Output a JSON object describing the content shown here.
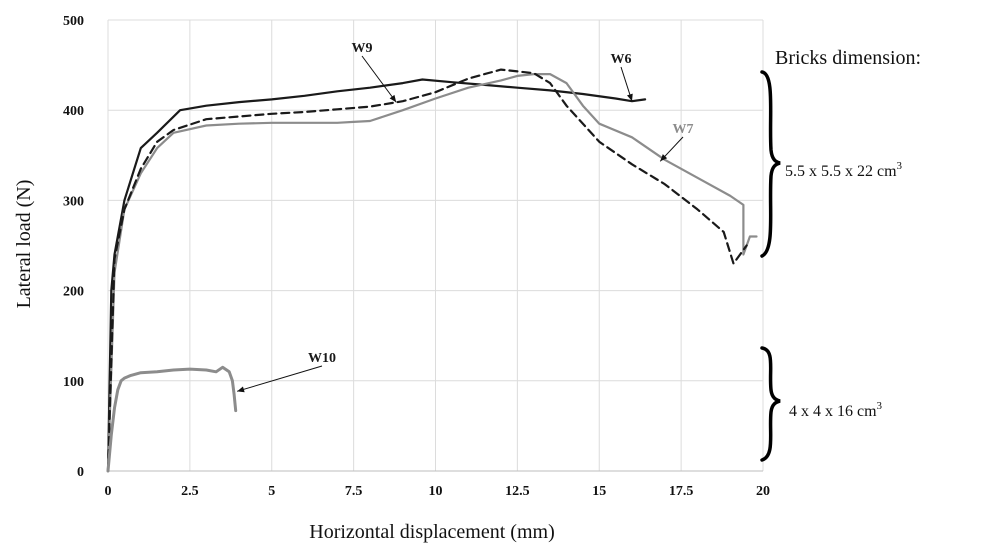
{
  "chart_data": {
    "type": "line",
    "xlabel": "Horizontal displacement (mm)",
    "ylabel": "Lateral load (N)",
    "xlim": [
      0,
      20
    ],
    "ylim": [
      0,
      500
    ],
    "x_ticks": [
      "0",
      "2.5",
      "5",
      "7.5",
      "10",
      "12.5",
      "15",
      "17.5",
      "20"
    ],
    "y_ticks": [
      "0",
      "100",
      "200",
      "300",
      "400",
      "500"
    ],
    "grid": true,
    "series": [
      {
        "name": "W6",
        "color": "#1a1a1a",
        "style": "solid",
        "x": [
          0,
          0.1,
          0.2,
          0.5,
          1.0,
          1.5,
          2.2,
          3.0,
          4.0,
          5.0,
          6.0,
          7.0,
          8.0,
          9.0,
          9.6,
          10.5,
          11.5,
          12.5,
          13.5,
          14.5,
          15.5,
          16.0,
          16.4
        ],
        "y": [
          0,
          200,
          240,
          300,
          358,
          375,
          400,
          405,
          409,
          412,
          416,
          421,
          425,
          430,
          434,
          431,
          428,
          425,
          422,
          418,
          413,
          410,
          412
        ]
      },
      {
        "name": "W7",
        "color": "#8c8c8c",
        "style": "solid",
        "x": [
          0,
          0.2,
          0.5,
          1.0,
          1.5,
          2.0,
          3.0,
          4.0,
          5.0,
          6.0,
          7.0,
          7.5,
          8.0,
          9.0,
          10.0,
          11.0,
          12.0,
          12.5,
          13.0,
          13.5,
          14.0,
          14.5,
          15.0,
          16.0,
          17.0,
          18.0,
          19.0,
          19.4,
          19.4,
          19.6,
          19.8
        ],
        "y": [
          0,
          220,
          290,
          330,
          358,
          375,
          383,
          385,
          386,
          386,
          386,
          387,
          388,
          400,
          413,
          425,
          433,
          438,
          440,
          440,
          430,
          405,
          385,
          370,
          345,
          325,
          305,
          295,
          240,
          260,
          260
        ]
      },
      {
        "name": "W9",
        "color": "#1a1a1a",
        "style": "dashed",
        "x": [
          0,
          0.2,
          0.5,
          1.0,
          1.5,
          2.0,
          3.0,
          4.0,
          5.0,
          6.0,
          7.0,
          8.0,
          9.0,
          10.0,
          11.0,
          12.0,
          13.0,
          13.5,
          14.0,
          15.0,
          16.0,
          17.0,
          18.0,
          18.8,
          19.1,
          19.3,
          19.5
        ],
        "y": [
          0,
          235,
          290,
          335,
          365,
          378,
          390,
          393,
          396,
          398,
          401,
          404,
          410,
          420,
          435,
          445,
          441,
          430,
          405,
          365,
          340,
          318,
          290,
          265,
          230,
          240,
          250
        ]
      },
      {
        "name": "W10",
        "color": "#8c8c8c",
        "style": "solid",
        "x": [
          0,
          0.1,
          0.2,
          0.3,
          0.4,
          0.5,
          0.7,
          1.0,
          1.5,
          2.0,
          2.5,
          3.0,
          3.3,
          3.5,
          3.7,
          3.8,
          3.85,
          3.9
        ],
        "y": [
          0,
          40,
          70,
          90,
          100,
          103,
          106,
          109,
          110,
          112,
          113,
          112,
          110,
          115,
          110,
          100,
          85,
          67
        ]
      }
    ],
    "annotations": [
      {
        "text": "Bricks dimension:"
      },
      {
        "text": "5.5 x 5.5 x 22 cm",
        "sup": "3"
      },
      {
        "text": "4 x 4 x 16 cm",
        "sup": "3"
      }
    ]
  }
}
